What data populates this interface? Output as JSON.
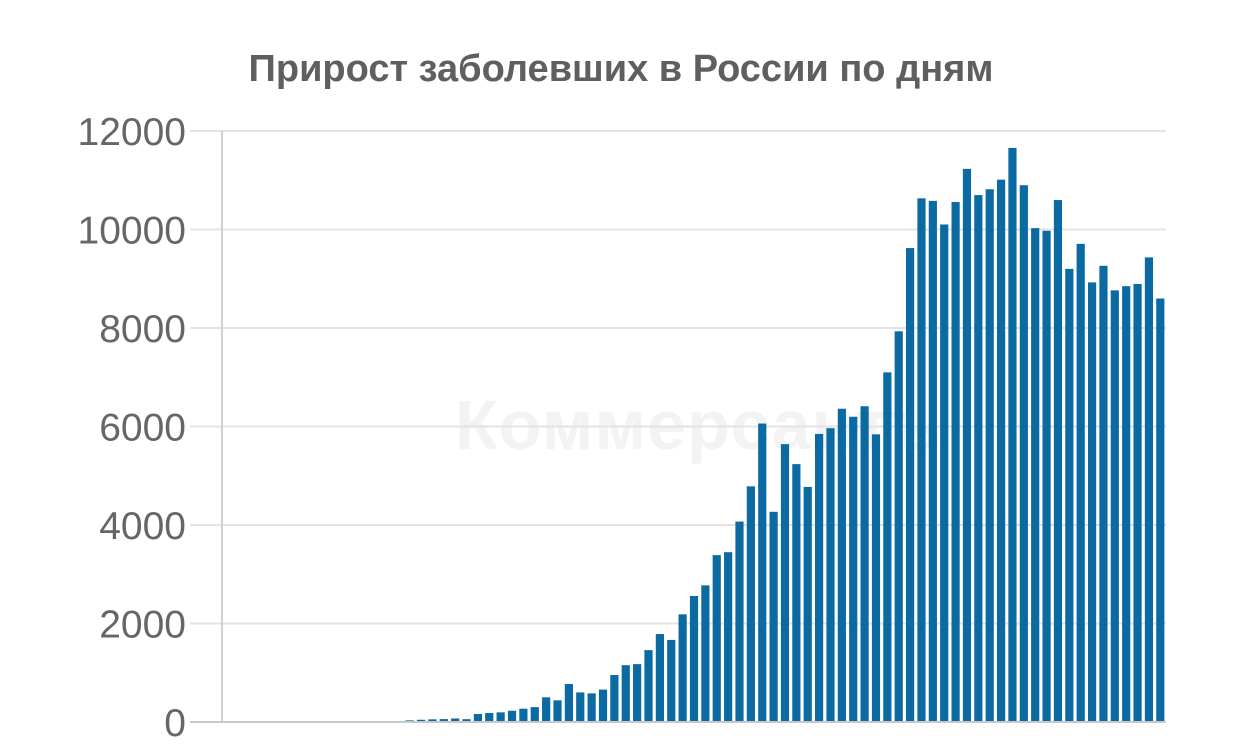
{
  "watermark": "Коммерсантъ",
  "chart_data": {
    "type": "bar",
    "title": "Прирост заболевших в России по дням",
    "xlabel": "",
    "ylabel": "",
    "ylim": [
      0,
      12000
    ],
    "y_ticks": [
      0,
      2000,
      4000,
      6000,
      8000,
      10000,
      12000
    ],
    "grid": true,
    "bar_color": "#0b6aa2",
    "values": [
      0,
      0,
      0,
      2,
      0,
      0,
      0,
      0,
      0,
      0,
      0,
      0,
      6,
      3,
      20,
      13,
      33,
      45,
      54,
      59,
      71,
      57,
      163,
      182,
      196,
      228,
      270,
      302,
      501,
      440,
      771,
      601,
      582,
      658,
      954,
      1154,
      1175,
      1459,
      1786,
      1667,
      2186,
      2558,
      2774,
      3388,
      3448,
      4070,
      4785,
      6060,
      4268,
      5642,
      5236,
      4774,
      5849,
      5966,
      6361,
      6198,
      6411,
      5841,
      7099,
      7933,
      9623,
      10633,
      10581,
      10102,
      10559,
      11231,
      10699,
      10817,
      11012,
      11656,
      10899,
      10028,
      9974,
      10598,
      9200,
      9709,
      8926,
      9263,
      8764,
      8849,
      8894,
      9434,
      8599
    ]
  }
}
